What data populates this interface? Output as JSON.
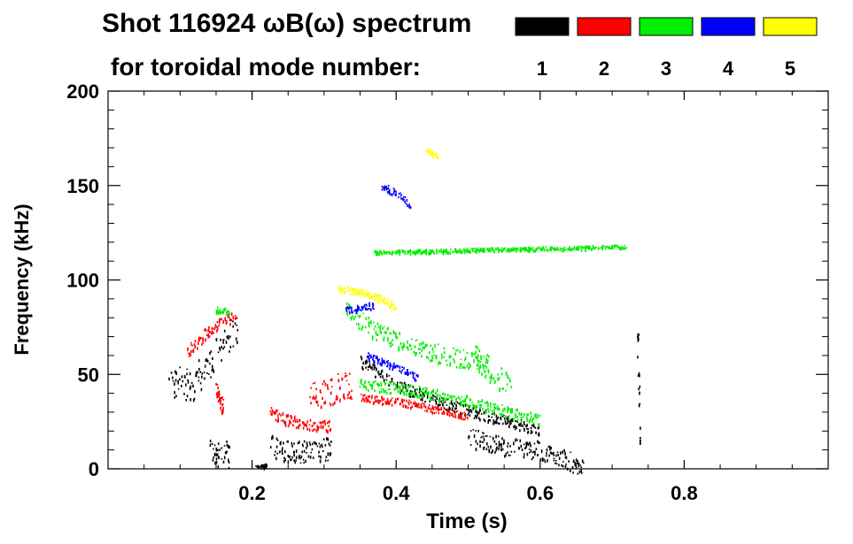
{
  "chart_data": {
    "type": "scatter",
    "title_line1": "Shot 116924 ωB(ω) spectrum",
    "title_line2": "for toroidal mode number:",
    "xlabel": "Time (s)",
    "ylabel": "Frequency (kHz)",
    "xlim": [
      0.0,
      1.0
    ],
    "ylim": [
      0,
      200
    ],
    "x_ticks": [
      0.2,
      0.4,
      0.6,
      0.8
    ],
    "y_ticks": [
      0,
      50,
      100,
      150,
      200
    ],
    "x_tick_labels": [
      "0.2",
      "0.4",
      "0.6",
      "0.8"
    ],
    "y_tick_labels": [
      "0",
      "50",
      "100",
      "150",
      "200"
    ],
    "legend": [
      {
        "label": "1",
        "color": "#000000"
      },
      {
        "label": "2",
        "color": "#ff0000"
      },
      {
        "label": "3",
        "color": "#00ee00"
      },
      {
        "label": "4",
        "color": "#0000ff"
      },
      {
        "label": "5",
        "color": "#ffff00"
      }
    ],
    "series": [
      {
        "name": "1",
        "color": "#000000",
        "segments": [
          {
            "x": [
              0.085,
              0.1,
              0.115,
              0.13,
              0.145,
              0.16,
              0.17,
              0.18
            ],
            "y": [
              43,
              47,
              44,
              52,
              60,
              68,
              72,
              75
            ],
            "spread": 9
          },
          {
            "x": [
              0.14,
              0.15,
              0.16,
              0.17
            ],
            "y": [
              12,
              8,
              10,
              7
            ],
            "spread": 7
          },
          {
            "x": [
              0.205,
              0.215,
              0.22
            ],
            "y": [
              2,
              2,
              2
            ],
            "spread": 1
          },
          {
            "x": [
              0.225,
              0.24,
              0.26,
              0.28,
              0.3,
              0.31
            ],
            "y": [
              14,
              10,
              9,
              10,
              11,
              10
            ],
            "spread": 6
          },
          {
            "x": [
              0.35,
              0.4,
              0.45,
              0.5,
              0.55,
              0.6
            ],
            "y": [
              57,
              45,
              37,
              31,
              26,
              20
            ],
            "spread": 3
          },
          {
            "x": [
              0.5,
              0.55,
              0.6,
              0.63,
              0.66
            ],
            "y": [
              17,
              12,
              10,
              6,
              1
            ],
            "spread": 5
          },
          {
            "x": [
              0.735,
              0.738
            ],
            "y": [
              70,
              15
            ],
            "spread": 2
          }
        ]
      },
      {
        "name": "2",
        "color": "#ff0000",
        "segments": [
          {
            "x": [
              0.11,
              0.13,
              0.15,
              0.17,
              0.18
            ],
            "y": [
              62,
              70,
              76,
              80,
              82
            ],
            "spread": 3
          },
          {
            "x": [
              0.15,
              0.155,
              0.16
            ],
            "y": [
              42,
              36,
              32
            ],
            "spread": 4
          },
          {
            "x": [
              0.225,
              0.25,
              0.27,
              0.3,
              0.31
            ],
            "y": [
              30,
              26,
              24,
              23,
              23
            ],
            "spread": 3
          },
          {
            "x": [
              0.28,
              0.3,
              0.32,
              0.34
            ],
            "y": [
              38,
              40,
              43,
              44
            ],
            "spread": 8
          },
          {
            "x": [
              0.35,
              0.4,
              0.45,
              0.5
            ],
            "y": [
              38,
              36,
              32,
              28
            ],
            "spread": 2
          }
        ]
      },
      {
        "name": "3",
        "color": "#00ee00",
        "segments": [
          {
            "x": [
              0.15,
              0.16,
              0.17
            ],
            "y": [
              85,
              84,
              82
            ],
            "spread": 2
          },
          {
            "x": [
              0.33,
              0.36,
              0.4,
              0.45,
              0.5,
              0.53
            ],
            "y": [
              85,
              76,
              68,
              62,
              58,
              56
            ],
            "spread": 5
          },
          {
            "x": [
              0.35,
              0.4,
              0.45,
              0.5,
              0.55,
              0.6
            ],
            "y": [
              45,
              43,
              40,
              36,
              31,
              26
            ],
            "spread": 3
          },
          {
            "x": [
              0.51,
              0.53,
              0.56
            ],
            "y": [
              60,
              52,
              44
            ],
            "spread": 6
          },
          {
            "x": [
              0.37,
              0.72
            ],
            "y": [
              115,
              118
            ],
            "spread": 1
          }
        ]
      },
      {
        "name": "4",
        "color": "#0000ff",
        "segments": [
          {
            "x": [
              0.38,
              0.4,
              0.42
            ],
            "y": [
              150,
              146,
              140
            ],
            "spread": 2
          },
          {
            "x": [
              0.33,
              0.35,
              0.37
            ],
            "y": [
              84,
              86,
              87
            ],
            "spread": 2
          },
          {
            "x": [
              0.36,
              0.4,
              0.43
            ],
            "y": [
              60,
              54,
              48
            ],
            "spread": 2
          }
        ]
      },
      {
        "name": "5",
        "color": "#ffff00",
        "segments": [
          {
            "x": [
              0.32,
              0.35,
              0.38,
              0.4
            ],
            "y": [
              96,
              94,
              90,
              86
            ],
            "spread": 2
          },
          {
            "x": [
              0.44,
              0.46
            ],
            "y": [
              170,
              165
            ],
            "spread": 1
          }
        ]
      }
    ]
  }
}
